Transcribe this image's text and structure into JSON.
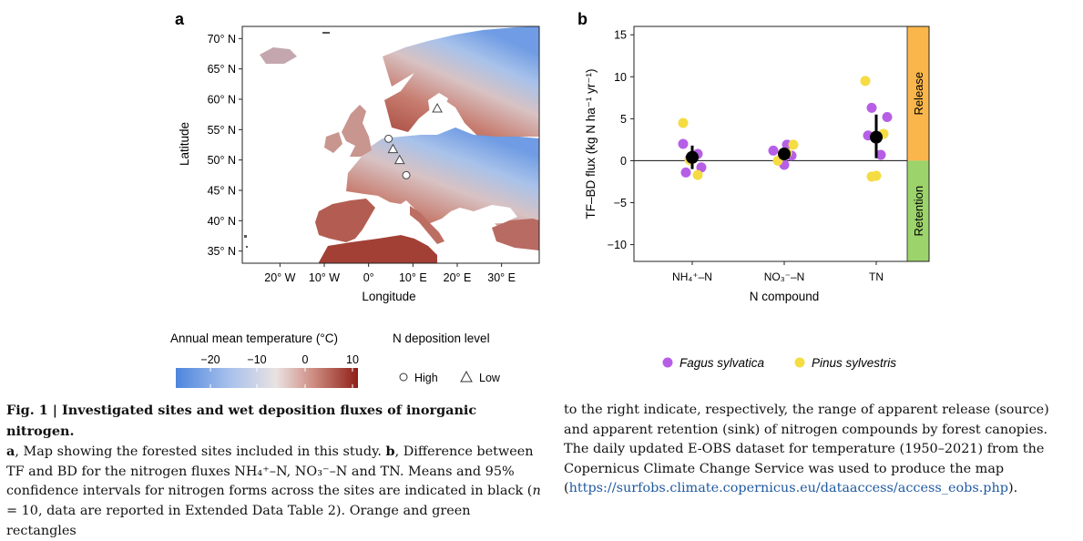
{
  "panel_a": {
    "label": "a",
    "xlabel": "Longitude",
    "ylabel": "Latitude",
    "lon_ticks": [
      "20° W",
      "10° W",
      "0°",
      "10° E",
      "20° E",
      "30° E"
    ],
    "lat_ticks": [
      "70° N",
      "65° N",
      "60° N",
      "55° N",
      "50° N",
      "45° N",
      "40° N",
      "35° N"
    ],
    "sites_high": [
      [
        4.5,
        53.5
      ],
      [
        8.5,
        47.5
      ]
    ],
    "sites_low": [
      [
        15.5,
        58.5
      ],
      [
        5.5,
        51.8
      ],
      [
        7.0,
        50.0
      ]
    ]
  },
  "colorbar": {
    "title": "Annual mean temperature (°C)",
    "ticks": [
      "−20",
      "−10",
      "0",
      "10"
    ],
    "colors": [
      "#4e86dd",
      "#a9c1ec",
      "#e9e2e2",
      "#cf8f84",
      "#8f1f16"
    ]
  },
  "n_legend": {
    "title": "N deposition level",
    "high": "High",
    "low": "Low"
  },
  "chart_data": {
    "type": "scatter",
    "panel_label": "b",
    "xlabel": "N compound",
    "ylabel": "TF–BD flux (kg N ha⁻¹ yr⁻¹)",
    "categories": [
      "NH₄⁺–N",
      "NO₃⁻–N",
      "TN"
    ],
    "ylim": [
      -12,
      16
    ],
    "yticks": [
      -10,
      -5,
      0,
      5,
      10,
      15
    ],
    "series": [
      {
        "name": "Fagus sylvatica",
        "color": "#b65fe6",
        "points": [
          [
            0,
            2.0
          ],
          [
            0,
            0.8
          ],
          [
            0,
            0.2
          ],
          [
            0,
            -0.8
          ],
          [
            0,
            -1.4
          ],
          [
            1,
            1.9
          ],
          [
            1,
            1.2
          ],
          [
            1,
            0.6
          ],
          [
            1,
            -0.5
          ],
          [
            2,
            6.3
          ],
          [
            2,
            5.2
          ],
          [
            2,
            3.0
          ],
          [
            2,
            0.7
          ]
        ]
      },
      {
        "name": "Pinus sylvestris",
        "color": "#f5dc42",
        "points": [
          [
            0,
            4.5
          ],
          [
            0,
            -1.7
          ],
          [
            0,
            0.1
          ],
          [
            1,
            1.9
          ],
          [
            1,
            0.0
          ],
          [
            1,
            0.9
          ],
          [
            2,
            9.5
          ],
          [
            2,
            3.2
          ],
          [
            2,
            -1.8
          ],
          [
            2,
            -1.9
          ]
        ]
      }
    ],
    "means": [
      {
        "category": 0,
        "mean": 0.4,
        "ci": [
          -1.0,
          1.8
        ]
      },
      {
        "category": 1,
        "mean": 0.8,
        "ci": [
          0.3,
          1.3
        ]
      },
      {
        "category": 2,
        "mean": 2.8,
        "ci": [
          0.3,
          5.5
        ]
      }
    ],
    "bands": [
      {
        "label": "Release",
        "range": [
          0,
          16
        ],
        "color": "#fbb64b"
      },
      {
        "label": "Retention",
        "range": [
          -12,
          0
        ],
        "color": "#9cd36b"
      }
    ]
  },
  "caption": {
    "title": "Fig. 1 | Investigated sites and wet deposition fluxes of inorganic nitrogen.",
    "p1a": "a",
    "p1b": ", Map showing the forested sites included in this study. ",
    "p1c": "b",
    "p1d": ", Difference between TF and BD for the nitrogen fluxes NH₄⁺–N, NO₃⁻–N and TN. Means and 95% confidence intervals for nitrogen forms across the sites are indicated in black (",
    "p1e": "n",
    "p1f": " = 10, data are reported in Extended Data Table 2). Orange and green rectangles",
    "p2a": "to the right indicate, respectively, the range of apparent release (source) and apparent retention (sink) of nitrogen compounds by forest canopies. The daily updated E-OBS dataset for temperature (1950–2021) from the Copernicus Climate Change Service was used to produce the map (",
    "p2link": "https://surfobs.climate.copernicus.eu/dataaccess/access_eobs.php",
    "p2b": ")."
  }
}
